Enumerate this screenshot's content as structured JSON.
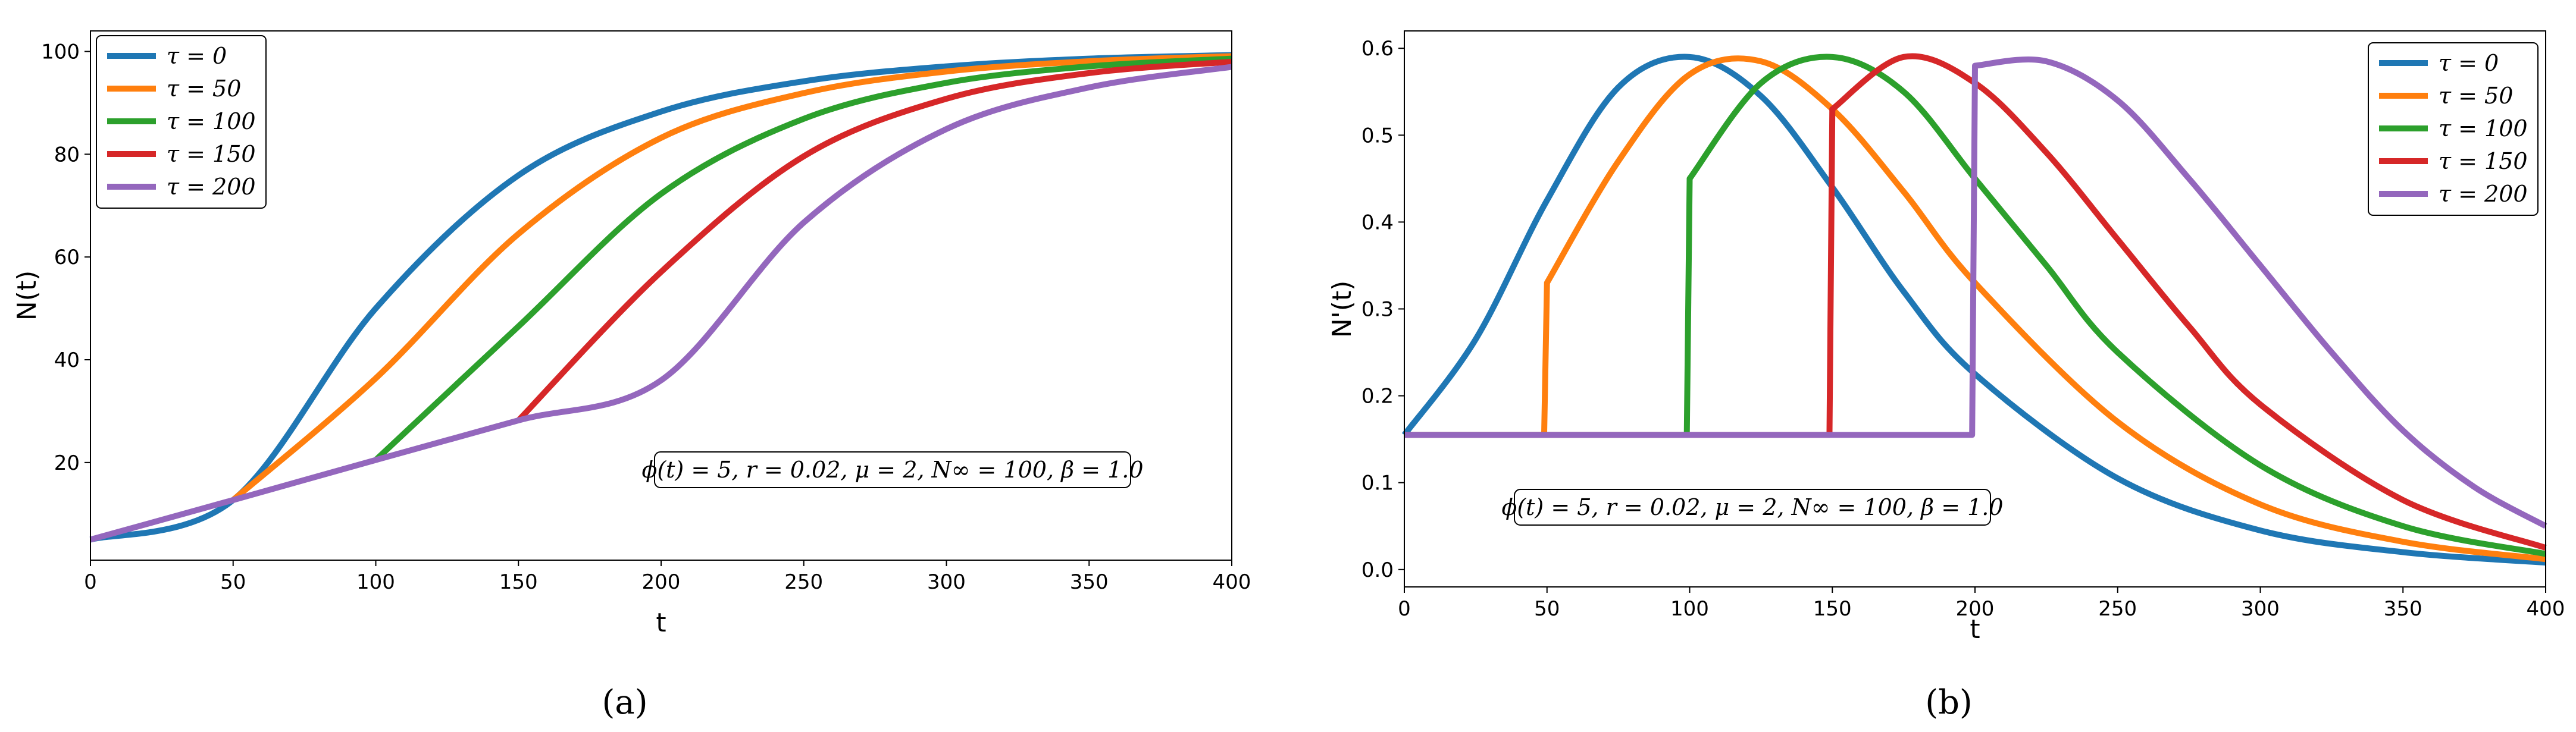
{
  "chart_data": [
    {
      "id": "a",
      "type": "line",
      "caption": "(a)",
      "xlabel": "t",
      "ylabel": "N(t)",
      "xlim": [
        0,
        400
      ],
      "ylim": [
        1,
        104
      ],
      "xticks": [
        0,
        50,
        100,
        150,
        200,
        250,
        300,
        350,
        400
      ],
      "yticks": [
        20,
        40,
        60,
        80,
        100
      ],
      "legend_position": "upper-left",
      "annotation": "ϕ(t) = 5, r = 0.02, μ = 2, N∞ = 100, β = 1.0",
      "series": [
        {
          "name": "τ = 0",
          "color": "#1f77b4",
          "x": [
            0,
            50,
            100,
            150,
            200,
            250,
            300,
            350,
            400
          ],
          "y": [
            5.0,
            12.7,
            50.0,
            75.9,
            88.3,
            94.2,
            97.1,
            98.6,
            99.3
          ]
        },
        {
          "name": "τ = 50",
          "color": "#ff7f0e",
          "x": [
            50,
            100,
            150,
            200,
            250,
            300,
            350,
            400
          ],
          "y": [
            12.7,
            36.4,
            64.5,
            83.2,
            91.9,
            96.1,
            98.1,
            99.1
          ]
        },
        {
          "name": "τ = 100",
          "color": "#2ca02c",
          "x": [
            100,
            150,
            200,
            250,
            300,
            350,
            400
          ],
          "y": [
            20.5,
            46.5,
            72.3,
            86.9,
            93.9,
            97.1,
            98.6
          ]
        },
        {
          "name": "τ = 150",
          "color": "#d62728",
          "x": [
            150,
            200,
            250,
            300,
            350,
            400
          ],
          "y": [
            28.2,
            57.1,
            79.6,
            90.8,
            95.8,
            98.0
          ]
        },
        {
          "name": "τ = 200",
          "color": "#9467bd",
          "x": [
            0,
            50,
            100,
            150,
            200,
            250,
            300,
            350,
            400
          ],
          "y": [
            5.0,
            12.7,
            20.5,
            28.2,
            36.0,
            66.7,
            84.9,
            93.0,
            97.0
          ]
        }
      ]
    },
    {
      "id": "b",
      "type": "line",
      "caption": "(b)",
      "xlabel": "t",
      "ylabel": "N'(t)",
      "xlim": [
        0,
        400
      ],
      "ylim": [
        -0.02,
        0.62
      ],
      "xticks": [
        0,
        50,
        100,
        150,
        200,
        250,
        300,
        350,
        400
      ],
      "yticks": [
        0.0,
        0.1,
        0.2,
        0.3,
        0.4,
        0.5,
        0.6
      ],
      "ytick_labels": [
        "0.0",
        "0.1",
        "0.2",
        "0.3",
        "0.4",
        "0.5",
        "0.6"
      ],
      "legend_position": "upper-right",
      "annotation": "ϕ(t) = 5, r = 0.02, μ = 2, N∞ = 100, β = 1.0",
      "series": [
        {
          "name": "τ = 0",
          "color": "#1f77b4",
          "x": [
            0,
            25,
            50,
            75,
            100,
            125,
            150,
            175,
            200,
            250,
            300,
            350,
            400
          ],
          "y": [
            0.155,
            0.265,
            0.425,
            0.555,
            0.59,
            0.545,
            0.44,
            0.32,
            0.225,
            0.105,
            0.045,
            0.02,
            0.008
          ]
        },
        {
          "name": "τ = 50",
          "color": "#ff7f0e",
          "x": [
            0,
            49,
            50,
            75,
            100,
            125,
            150,
            175,
            200,
            250,
            300,
            350,
            400
          ],
          "y": [
            0.155,
            0.155,
            0.33,
            0.47,
            0.57,
            0.585,
            0.53,
            0.435,
            0.33,
            0.17,
            0.075,
            0.032,
            0.012
          ]
        },
        {
          "name": "τ = 100",
          "color": "#2ca02c",
          "x": [
            0,
            99,
            100,
            125,
            150,
            175,
            200,
            225,
            250,
            300,
            350,
            400
          ],
          "y": [
            0.155,
            0.155,
            0.45,
            0.56,
            0.59,
            0.55,
            0.45,
            0.35,
            0.25,
            0.12,
            0.05,
            0.018
          ]
        },
        {
          "name": "τ = 150",
          "color": "#d62728",
          "x": [
            0,
            149,
            150,
            175,
            200,
            225,
            250,
            275,
            300,
            350,
            400
          ],
          "y": [
            0.155,
            0.155,
            0.53,
            0.59,
            0.56,
            0.48,
            0.38,
            0.28,
            0.19,
            0.08,
            0.025
          ]
        },
        {
          "name": "τ = 200",
          "color": "#9467bd",
          "x": [
            0,
            199,
            200,
            225,
            250,
            275,
            300,
            325,
            350,
            375,
            400
          ],
          "y": [
            0.155,
            0.155,
            0.58,
            0.585,
            0.54,
            0.45,
            0.35,
            0.25,
            0.16,
            0.095,
            0.05
          ]
        }
      ]
    }
  ]
}
